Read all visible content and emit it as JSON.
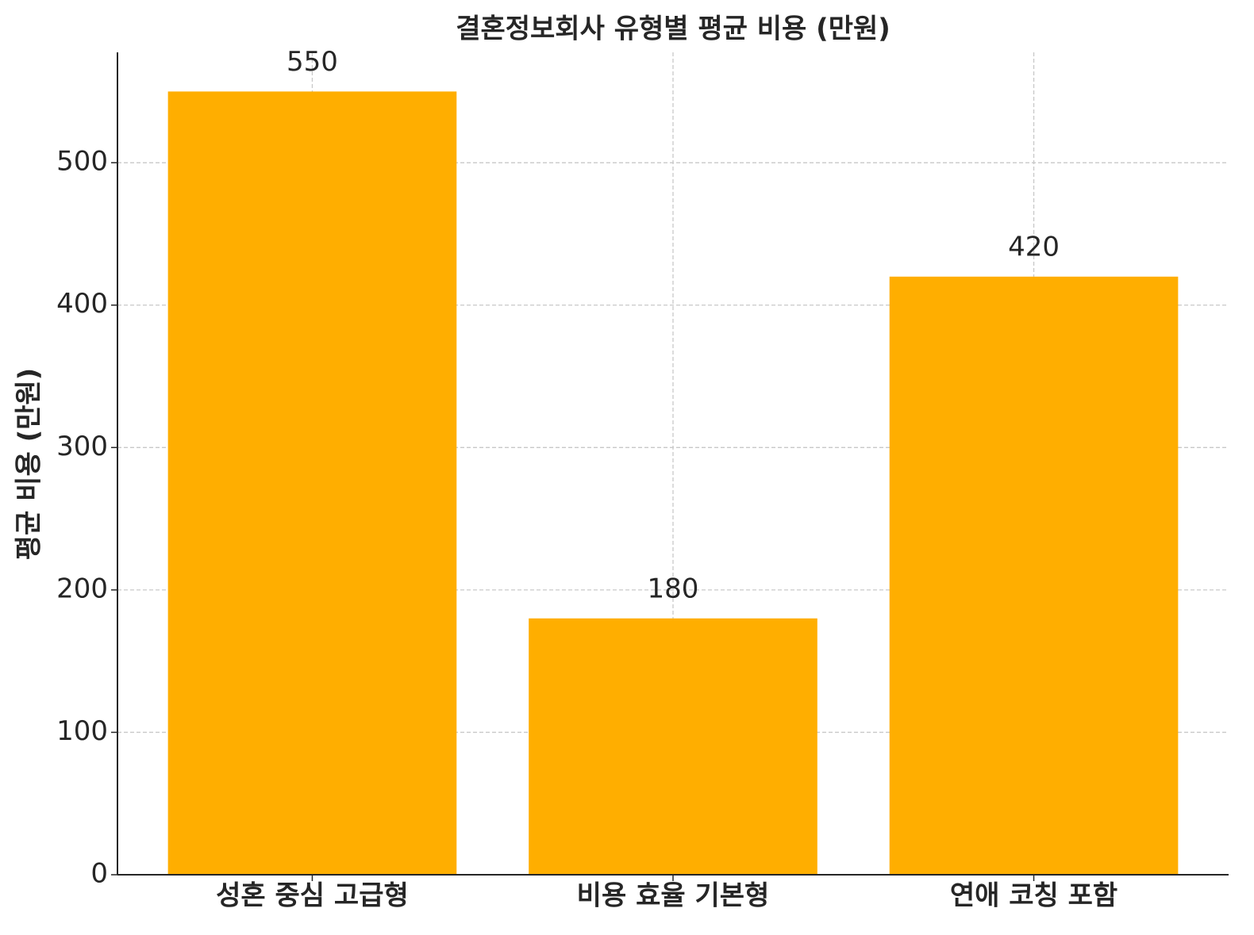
{
  "chart_data": {
    "type": "bar",
    "title": "결혼정보회사 유형별 평균 비용 (만원)",
    "y_label": "평균 비용 (만원)",
    "categories": [
      "성혼 중심 고급형",
      "비용 효율 기본형",
      "연애 코칭 포함"
    ],
    "values": [
      550,
      180,
      420
    ],
    "color": "#ffae00",
    "ylim": [
      0,
      577.5
    ],
    "yticks": [
      0,
      100,
      200,
      300,
      400,
      500
    ],
    "grid": true
  }
}
